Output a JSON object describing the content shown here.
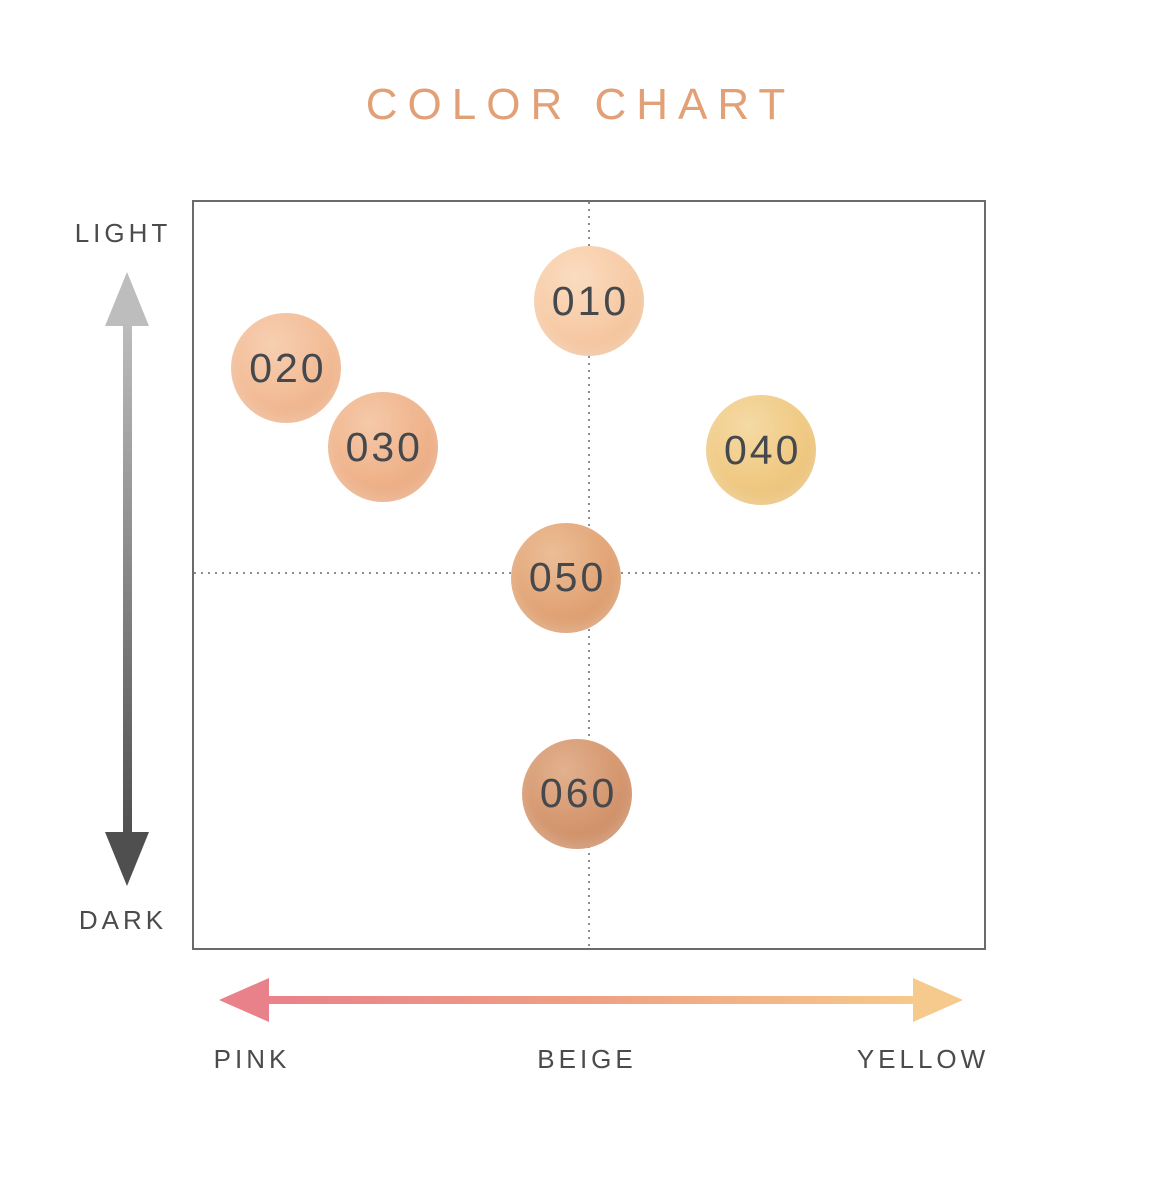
{
  "colors": {
    "accent_title": "#E2A077",
    "label_text": "#4A4B4D",
    "circle_text": "#45484D",
    "box_border": "#6A6A6A",
    "dotted_line": "#8F8F8F",
    "arrow_gray_light": "#BDBDBD",
    "arrow_gray_dark": "#4F4F4F",
    "arrow_pink": "#E9818B",
    "arrow_mid": "#EFA083",
    "arrow_yellow": "#F6C98C"
  },
  "chart_data": {
    "type": "scatter",
    "title": "COLOR CHART",
    "axes": {
      "vertical": {
        "top_label": "LIGHT",
        "bottom_label": "DARK"
      },
      "horizontal": {
        "left_label": "PINK",
        "center_label": "BEIGE",
        "right_label": "YELLOW"
      }
    },
    "crosshair": {
      "x_pct": 50.0,
      "y_pct": 49.7
    },
    "points": [
      {
        "label": "010",
        "x_pct": 50.0,
        "y_pct": 13.3,
        "color": "#F7CBA6",
        "highlight": "#FBDCC0",
        "shadow": "#EDB88E"
      },
      {
        "label": "020",
        "x_pct": 11.7,
        "y_pct": 22.3,
        "color": "#F2BC96",
        "highlight": "#F7CFB2",
        "shadow": "#E8A87E"
      },
      {
        "label": "030",
        "x_pct": 23.9,
        "y_pct": 32.9,
        "color": "#EFB48C",
        "highlight": "#F5C9A8",
        "shadow": "#E4A076"
      },
      {
        "label": "040",
        "x_pct": 71.8,
        "y_pct": 33.3,
        "color": "#F0CA84",
        "highlight": "#F5DAA5",
        "shadow": "#E5B86C"
      },
      {
        "label": "050",
        "x_pct": 47.1,
        "y_pct": 50.4,
        "color": "#E2A577",
        "highlight": "#ECBE97",
        "shadow": "#D49263"
      },
      {
        "label": "060",
        "x_pct": 48.5,
        "y_pct": 79.3,
        "color": "#D5976F",
        "highlight": "#E2B18F",
        "shadow": "#C4845C"
      }
    ]
  }
}
